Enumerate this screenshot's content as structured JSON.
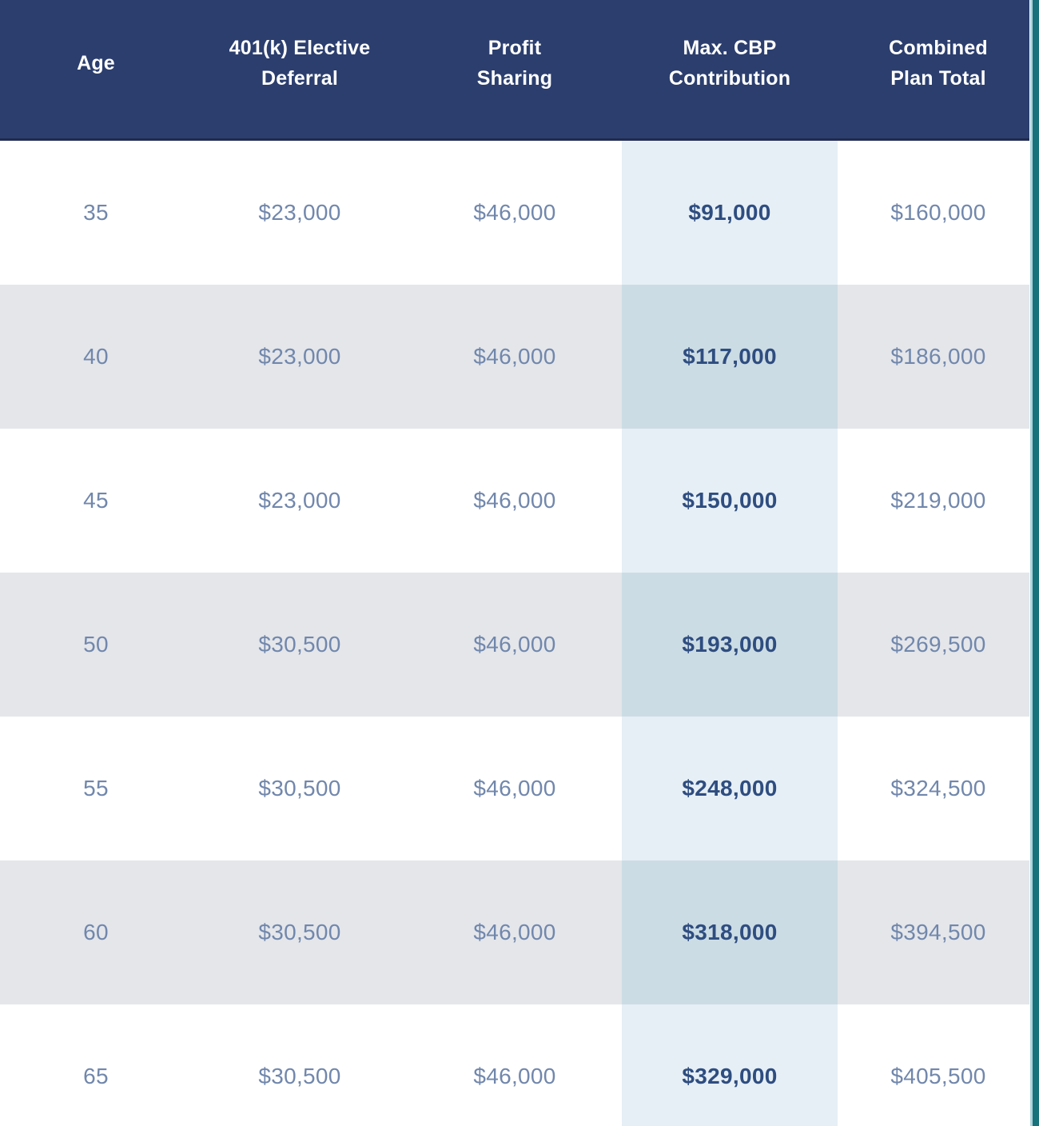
{
  "table": {
    "columns": [
      {
        "id": "age",
        "line1": "Age",
        "line2": ""
      },
      {
        "id": "deferral",
        "line1": "401(k) Elective",
        "line2": "Deferral"
      },
      {
        "id": "profit_sharing",
        "line1": "Profit",
        "line2": "Sharing"
      },
      {
        "id": "max_cbp",
        "line1": "Max. CBP",
        "line2": "Contribution"
      },
      {
        "id": "combined_total",
        "line1": "Combined",
        "line2": "Plan Total"
      }
    ],
    "rows": [
      {
        "age": "35",
        "deferral": "$23,000",
        "profit_sharing": "$46,000",
        "max_cbp": "$91,000",
        "combined_total": "$160,000"
      },
      {
        "age": "40",
        "deferral": "$23,000",
        "profit_sharing": "$46,000",
        "max_cbp": "$117,000",
        "combined_total": "$186,000"
      },
      {
        "age": "45",
        "deferral": "$23,000",
        "profit_sharing": "$46,000",
        "max_cbp": "$150,000",
        "combined_total": "$219,000"
      },
      {
        "age": "50",
        "deferral": "$30,500",
        "profit_sharing": "$46,000",
        "max_cbp": "$193,000",
        "combined_total": "$269,500"
      },
      {
        "age": "55",
        "deferral": "$30,500",
        "profit_sharing": "$46,000",
        "max_cbp": "$248,000",
        "combined_total": "$324,500"
      },
      {
        "age": "60",
        "deferral": "$30,500",
        "profit_sharing": "$46,000",
        "max_cbp": "$318,000",
        "combined_total": "$394,500"
      },
      {
        "age": "65",
        "deferral": "$30,500",
        "profit_sharing": "$46,000",
        "max_cbp": "$329,000",
        "combined_total": "$405,500"
      }
    ]
  },
  "colors": {
    "header_bg": "#2b3e6e",
    "header_border": "#212b51",
    "header_text": "#ffffff",
    "body_text": "#7187ac",
    "row_alt_bg": "#e4e6ea",
    "highlight_col_bg": "#e6eff5",
    "highlight_col_alt_bg": "#ccdce4",
    "highlight_text": "#2e4d80",
    "edge_teal": "#17727c",
    "edge_teal_light": "#aed3da"
  }
}
